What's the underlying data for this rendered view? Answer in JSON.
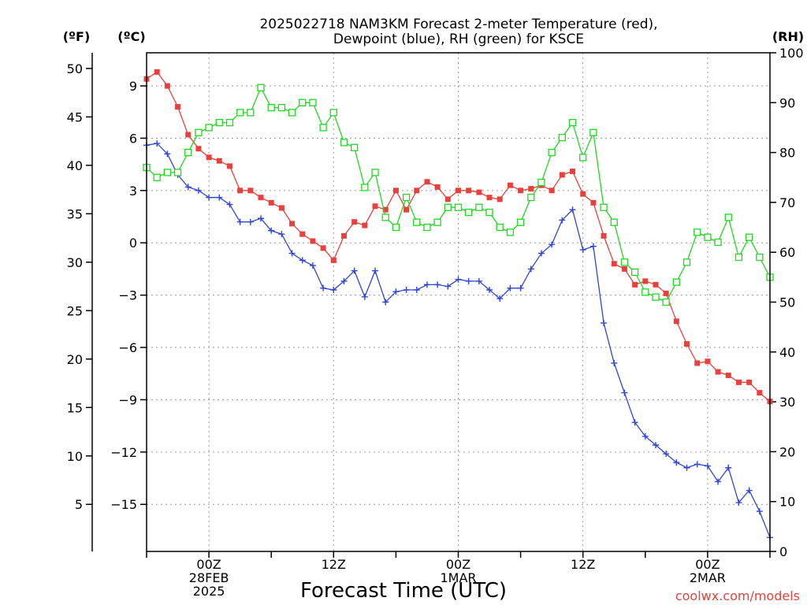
{
  "chart_data": {
    "type": "line",
    "title_lines": [
      "2025022718 NAM3KM Forecast 2-meter Temperature (red),",
      "Dewpoint (blue), RH (green) for KSCE"
    ],
    "xlabel": "Forecast Time (UTC)",
    "credit": "coolwx.com/models",
    "units": {
      "fahrenheit": "(ºF)",
      "celsius": "(ºC)",
      "rh": "(RH)"
    },
    "x_start": "2025-02-27T18Z",
    "x_step_hours": 1,
    "xlim_hours": [
      0,
      60
    ],
    "x_ticks": [
      {
        "hour": 6,
        "lines": [
          "00Z",
          "28FEB",
          "2025"
        ]
      },
      {
        "hour": 18,
        "lines": [
          "12Z"
        ]
      },
      {
        "hour": 30,
        "lines": [
          "00Z",
          "1MAR"
        ]
      },
      {
        "hour": 42,
        "lines": [
          "12Z"
        ]
      },
      {
        "hour": 54,
        "lines": [
          "00Z",
          "2MAR"
        ]
      }
    ],
    "y_celsius": {
      "range": [
        -17.7,
        10.9
      ],
      "ticks": [
        9,
        6,
        3,
        0,
        -3,
        -6,
        -9,
        -12,
        -15
      ]
    },
    "y_fahrenheit": {
      "ticks": [
        50,
        45,
        40,
        35,
        30,
        25,
        20,
        15,
        10,
        5
      ]
    },
    "y_rh": {
      "range": [
        0,
        100
      ],
      "ticks": [
        0,
        10,
        20,
        30,
        40,
        50,
        60,
        70,
        80,
        90,
        100
      ]
    },
    "grid": true,
    "series": [
      {
        "name": "Temperature",
        "color": "#e8403c",
        "marker": "filled-square",
        "axis": "celsius",
        "values": [
          9.4,
          9.8,
          9.0,
          7.8,
          6.2,
          5.4,
          4.9,
          4.7,
          4.4,
          3.0,
          3.0,
          2.6,
          2.3,
          2.0,
          1.1,
          0.5,
          0.1,
          -0.3,
          -1.0,
          0.4,
          1.2,
          1.0,
          2.1,
          1.9,
          3.0,
          1.9,
          3.0,
          3.5,
          3.2,
          2.5,
          3.0,
          3.0,
          2.9,
          2.6,
          2.5,
          3.3,
          3.0,
          3.1,
          3.3,
          3.0,
          3.9,
          4.1,
          2.8,
          2.3,
          0.4,
          -1.2,
          -1.5,
          -2.4,
          -2.2,
          -2.4,
          -2.9,
          -4.5,
          -5.8,
          -6.9,
          -6.8,
          -7.4,
          -7.6,
          -8.0,
          -8.0,
          -8.6,
          -9.1
        ]
      },
      {
        "name": "Dewpoint",
        "color": "#2f45d8",
        "marker": "plus",
        "axis": "celsius",
        "values": [
          5.6,
          5.7,
          5.1,
          3.9,
          3.2,
          3.0,
          2.6,
          2.6,
          2.2,
          1.2,
          1.2,
          1.4,
          0.7,
          0.5,
          -0.6,
          -1.0,
          -1.3,
          -2.6,
          -2.7,
          -2.2,
          -1.6,
          -3.1,
          -1.6,
          -3.4,
          -2.8,
          -2.7,
          -2.7,
          -2.4,
          -2.4,
          -2.5,
          -2.1,
          -2.2,
          -2.2,
          -2.7,
          -3.2,
          -2.6,
          -2.6,
          -1.5,
          -0.6,
          -0.1,
          1.3,
          1.9,
          -0.4,
          -0.2,
          -4.6,
          -6.9,
          -8.6,
          -10.3,
          -11.1,
          -11.6,
          -12.1,
          -12.6,
          -12.9,
          -12.7,
          -12.8,
          -13.7,
          -12.9,
          -14.9,
          -14.2,
          -15.4,
          -16.9
        ]
      },
      {
        "name": "RH",
        "color": "#1fd81f",
        "marker": "open-square",
        "axis": "rh",
        "values": [
          77,
          75,
          76,
          76,
          80,
          84,
          85,
          86,
          86,
          88,
          88,
          93,
          89,
          89,
          88,
          90,
          90,
          85,
          88,
          82,
          81,
          73,
          76,
          67,
          65,
          71,
          66,
          65,
          66,
          69,
          69,
          68,
          69,
          68,
          65,
          64,
          66,
          71,
          74,
          80,
          83,
          86,
          79,
          84,
          69,
          66,
          58,
          56,
          52,
          51,
          50,
          54,
          58,
          64,
          63,
          62,
          67,
          59,
          63,
          59,
          55
        ]
      }
    ]
  }
}
